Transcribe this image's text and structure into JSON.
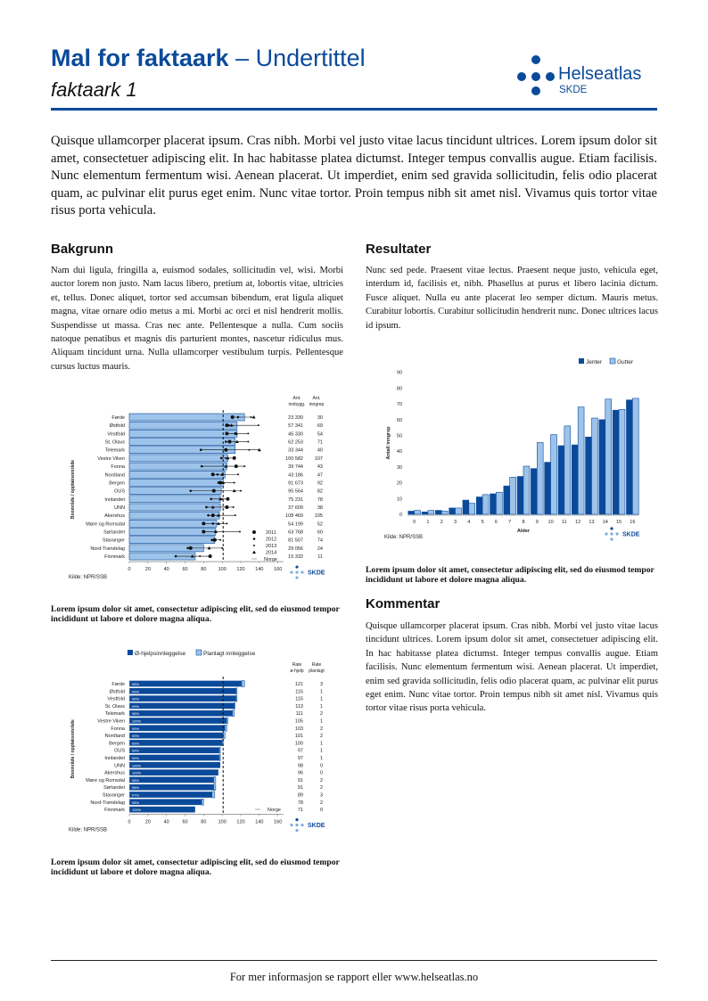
{
  "header": {
    "title_bold": "Mal for faktaark",
    "title_rest": " – Undertittel",
    "subtitle": "faktaark 1",
    "logo_name": "Helseatlas",
    "logo_sub": "SKDE"
  },
  "intro": "Quisque ullamcorper placerat ipsum. Cras nibh. Morbi vel justo vitae lacus tincidunt ultrices. Lorem ipsum dolor sit amet, consectetuer adipiscing elit. In hac habitasse platea dictumst. Integer tempus convallis augue. Etiam facilisis. Nunc elementum fermentum wisi. Aenean placerat. Ut imperdiet, enim sed gravida sollicitudin, felis odio placerat quam, ac pulvinar elit purus eget enim. Nunc vitae tortor. Proin tempus nibh sit amet nisl. Vivamus quis tortor vitae risus porta vehicula.",
  "bakgrunn": {
    "heading": "Bakgrunn",
    "text": "Nam dui ligula, fringilla a, euismod sodales, sollicitudin vel, wisi. Morbi auctor lorem non justo. Nam lacus libero, pretium at, lobortis vitae, ultricies et, tellus. Donec aliquet, tortor sed accumsan bibendum, erat ligula aliquet magna, vitae ornare odio metus a mi. Morbi ac orci et nisl hendrerit mollis. Suspendisse ut massa. Cras nec ante. Pellentesque a nulla. Cum sociis natoque penatibus et magnis dis parturient montes, nascetur ridiculus mus. Aliquam tincidunt urna. Nulla ullamcorper vestibulum turpis. Pellentesque cursus luctus mauris."
  },
  "resultater": {
    "heading": "Resultater",
    "text": "Nunc sed pede. Praesent vitae lectus. Praesent neque justo, vehicula eget, interdum id, facilisis et, nibh. Phasellus at purus et libero lacinia dictum. Fusce aliquet. Nulla eu ante placerat leo semper dictum. Mauris metus. Curabitur lobortis. Curabitur sollicitudin hendrerit nunc. Donec ultrices lacus id ipsum."
  },
  "kommentar": {
    "heading": "Kommentar",
    "text": "Quisque ullamcorper placerat ipsum. Cras nibh. Morbi vel justo vitae lacus tincidunt ultrices. Lorem ipsum dolor sit amet, consectetuer adipiscing elit. In hac habitasse platea dictumst. Integer tempus convallis augue. Etiam facilisis. Nunc elementum fermentum wisi. Aenean placerat. Ut imperdiet, enim sed gravida sollicitudin, felis odio placerat quam, ac pulvinar elit purus eget enim. Nunc vitae tortor. Proin tempus nibh sit amet nisl. Vivamus quis tortor vitae risus porta vehicula."
  },
  "captions": {
    "chart1": "Lorem ipsum dolor sit amet, consectetur adipiscing elit, sed do eiusmod tempor incididunt ut labore et dolore magna aliqua.",
    "chart2": "Lorem ipsum dolor sit amet, consectetur adipiscing elit, sed do eiusmod tempor incididunt ut labore et dolore magna aliqua.",
    "chart3": "Lorem ipsum dolor sit amet, consectetur adipiscing elit, sed do eiusmod tempor incididunt ut labore et dolore magna aliqua."
  },
  "footer": "For mer informasjon se rapport eller www.helseatlas.no",
  "colors": {
    "brand": "#0b4a9a",
    "light": "#9dc3ea"
  },
  "chart_data": [
    {
      "type": "bar",
      "orientation": "horizontal",
      "ylabel": "Boområde / opptaksområde",
      "source": "Kilde: NPR/SSB",
      "logo": "SKDE",
      "categories": [
        "Førde",
        "Østfold",
        "Vestfold",
        "St. Olavs",
        "Telemark",
        "Vestre Viken",
        "Fonna",
        "Nordland",
        "Bergen",
        "OUS",
        "Innlandet",
        "UNN",
        "Akershus",
        "Møre og Romsdal",
        "Sørlandet",
        "Stavanger",
        "Nord-Trøndelag",
        "Finnmark"
      ],
      "values": [
        124,
        116,
        116,
        114,
        114,
        106,
        105,
        103,
        101,
        99,
        98,
        98,
        97,
        94,
        93,
        92,
        80,
        71
      ],
      "years": [
        "2011",
        "2012",
        "2013",
        "2014"
      ],
      "yearly": [
        [
          111,
          117,
          131,
          134
        ],
        [
          105,
          107,
          139,
          110
        ],
        [
          105,
          114,
          128,
          115
        ],
        [
          108,
          104,
          128,
          116
        ],
        [
          104,
          77,
          129,
          140
        ],
        [
          113,
          99,
          104,
          106
        ],
        [
          115,
          78,
          124,
          104
        ],
        [
          90,
          95,
          117,
          100
        ],
        [
          98,
          96,
          113,
          101
        ],
        [
          91,
          66,
          120,
          113
        ],
        [
          106,
          88,
          100,
          98
        ],
        [
          105,
          83,
          112,
          90
        ],
        [
          90,
          85,
          114,
          96
        ],
        [
          80,
          90,
          105,
          96
        ],
        [
          80,
          93,
          119,
          93
        ],
        [
          92,
          89,
          98,
          91
        ],
        [
          66,
          63,
          100,
          86
        ],
        [
          87,
          50,
          76,
          68
        ]
      ],
      "norway": 101,
      "norway_label": "Norge",
      "xlim": [
        0,
        160
      ],
      "xticks": [
        0,
        20,
        40,
        60,
        80,
        100,
        120,
        140,
        160
      ],
      "col1_header": [
        "Ant.",
        "innbygg."
      ],
      "col2_header": [
        "Ant.",
        "inngrep"
      ],
      "col1": [
        "23 330",
        "57 341",
        "45 330",
        "62 253",
        "33 344",
        "100 582",
        "39 744",
        "43 186",
        "91 673",
        "95 564",
        "75 231",
        "37 609",
        "108 469",
        "54 199",
        "63 768",
        "81 507",
        "29 056",
        "15 332"
      ],
      "col2": [
        "30",
        "69",
        "54",
        "71",
        "40",
        "107",
        "43",
        "47",
        "92",
        "82",
        "78",
        "38",
        "105",
        "52",
        "60",
        "74",
        "24",
        "11"
      ]
    },
    {
      "type": "bar",
      "orientation": "horizontal",
      "stacked": true,
      "ylabel": "Boområde / opptaksområde",
      "source": "Kilde: NPR/SSB",
      "logo": "SKDE",
      "categories": [
        "Førde",
        "Østfold",
        "Vestfold",
        "St. Olavs",
        "Telemark",
        "Vestre Viken",
        "Fonna",
        "Nordland",
        "Bergen",
        "OUS",
        "Innlandet",
        "UNN",
        "Akershus",
        "Møre og Romsdal",
        "Sørlandet",
        "Stavanger",
        "Nord-Trøndelag",
        "Finnmark"
      ],
      "series": [
        {
          "name": "Ø-hjelpsinnleggelse",
          "values": [
            121,
            115,
            115,
            113,
            111,
            105,
            103,
            101,
            100,
            97,
            97,
            98,
            96,
            91,
            91,
            89,
            78,
            71
          ]
        },
        {
          "name": "Planlagt innleggelse",
          "values": [
            3,
            1,
            1,
            1,
            2,
            1,
            2,
            2,
            1,
            1,
            1,
            0,
            0,
            2,
            2,
            3,
            2,
            0
          ]
        }
      ],
      "share_labels": [
        "98%",
        "99%",
        "99%",
        "99%",
        "98%",
        "100%",
        "99%",
        "99%",
        "99%",
        "99%",
        "99%",
        "100%",
        "100%",
        "98%",
        "98%",
        "97%",
        "98%",
        "100%"
      ],
      "norway": 101,
      "norway_label": "Norge",
      "xlim": [
        0,
        160
      ],
      "xticks": [
        0,
        20,
        40,
        60,
        80,
        100,
        120,
        140,
        160
      ],
      "col1_header": [
        "Rate",
        "ø-hjelp"
      ],
      "col2_header": [
        "Rate",
        "planlagt"
      ],
      "col1": [
        "121",
        "115",
        "115",
        "113",
        "111",
        "105",
        "103",
        "101",
        "100",
        "97",
        "97",
        "98",
        "96",
        "91",
        "91",
        "89",
        "78",
        "71"
      ],
      "col2": [
        "3",
        "1",
        "1",
        "1",
        "2",
        "1",
        "2",
        "2",
        "1",
        "1",
        "1",
        "0",
        "0",
        "2",
        "2",
        "3",
        "2",
        "0"
      ]
    },
    {
      "type": "bar",
      "xlabel": "Alder",
      "ylabel": "Antall inngrep",
      "source": "Kilde: NPR/SSB",
      "logo": "SKDE",
      "legend": "top-right",
      "categories": [
        "0",
        "1",
        "2",
        "3",
        "4",
        "5",
        "6",
        "7",
        "8",
        "9",
        "10",
        "11",
        "12",
        "13",
        "14",
        "15",
        "16"
      ],
      "series": [
        {
          "name": "Jenter",
          "values": [
            2,
            1.5,
            2.5,
            4,
            9,
            11,
            13,
            18,
            24,
            29,
            33,
            43.5,
            44,
            49,
            60,
            66,
            72.5
          ]
        },
        {
          "name": "Gutter",
          "values": [
            2.5,
            2.5,
            2,
            4,
            7,
            12.5,
            14,
            23.5,
            30.5,
            45.5,
            50.5,
            56,
            68,
            61,
            73,
            66.5,
            73.5
          ]
        }
      ],
      "ylim": [
        0,
        90
      ],
      "yticks": [
        0,
        10,
        20,
        30,
        40,
        50,
        60,
        70,
        80,
        90
      ]
    }
  ]
}
